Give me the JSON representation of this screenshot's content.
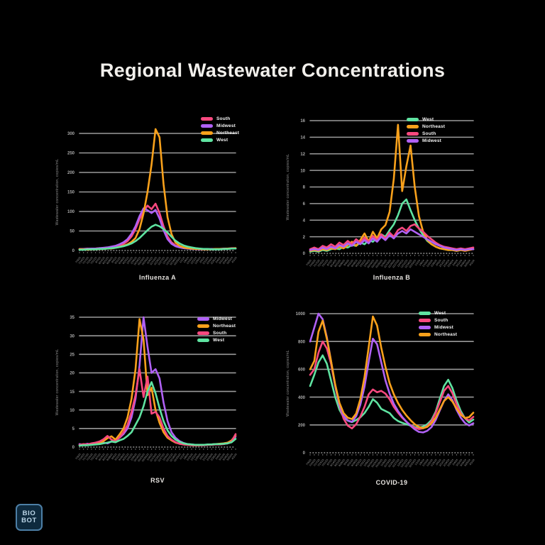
{
  "title": "Regional Wastewater Concentrations",
  "y_axis_title": "Wastewater concentration, copies/mL",
  "colors": {
    "South": "#F8497F",
    "Midwest": "#B061F5",
    "Northeast": "#F9A11B",
    "West": "#5FE3A1",
    "grid": "#9A9A9A",
    "tick_label": "#ABABAB",
    "title_text": "#F2F0EC"
  },
  "x_labels": [
    "7/3/23",
    "7/10/23",
    "7/17/23",
    "7/24/23",
    "7/31/23",
    "8/7/23",
    "8/14/23",
    "8/21/23",
    "8/28/23",
    "9/4/23",
    "9/11/23",
    "9/18/23",
    "9/25/23",
    "10/2/23",
    "10/9/23",
    "10/16/23",
    "10/23/23",
    "10/30/23",
    "11/6/23",
    "11/13/23",
    "11/20/23",
    "11/27/23",
    "12/4/23",
    "12/11/23",
    "12/18/23",
    "12/25/23",
    "1/1/24",
    "1/8/24",
    "1/15/24",
    "1/22/24",
    "1/29/24",
    "2/5/24",
    "2/12/24",
    "2/19/24",
    "2/26/24",
    "3/4/24",
    "3/11/24",
    "3/18/24",
    "3/25/24",
    "4/1/24"
  ],
  "chart_data": [
    {
      "id": "influenza-a",
      "type": "line",
      "subtitle": "Influenza A",
      "grid": true,
      "legend_position": "top-right",
      "ylim": [
        0,
        300
      ],
      "y_ticks": [
        0,
        50,
        100,
        150,
        200,
        250,
        300
      ],
      "series": [
        {
          "name": "South",
          "values": [
            4,
            4,
            5,
            4,
            5,
            6,
            5,
            7,
            8,
            10,
            13,
            17,
            24,
            36,
            55,
            80,
            100,
            115,
            106,
            120,
            96,
            62,
            36,
            21,
            13,
            9,
            7,
            5,
            5,
            4,
            4,
            3,
            4,
            3,
            4,
            4,
            5,
            5,
            6,
            6
          ]
        },
        {
          "name": "Midwest",
          "values": [
            3,
            4,
            4,
            5,
            5,
            6,
            7,
            8,
            10,
            12,
            16,
            21,
            29,
            43,
            62,
            88,
            108,
            103,
            96,
            104,
            82,
            52,
            29,
            17,
            11,
            8,
            6,
            5,
            4,
            4,
            3,
            3,
            3,
            4,
            3,
            4,
            4,
            5,
            5,
            5
          ]
        },
        {
          "name": "Northeast",
          "values": [
            3,
            3,
            2,
            3,
            3,
            4,
            4,
            5,
            5,
            7,
            9,
            12,
            16,
            22,
            32,
            55,
            95,
            150,
            220,
            311,
            290,
            170,
            85,
            42,
            20,
            12,
            8,
            6,
            5,
            4,
            4,
            3,
            3,
            3,
            4,
            4,
            4,
            5,
            5,
            6
          ]
        },
        {
          "name": "West",
          "values": [
            2,
            2,
            3,
            3,
            3,
            4,
            4,
            5,
            6,
            7,
            9,
            11,
            14,
            18,
            24,
            32,
            42,
            52,
            61,
            66,
            62,
            55,
            46,
            35,
            25,
            18,
            13,
            10,
            8,
            6,
            5,
            4,
            4,
            3,
            3,
            3,
            4,
            4,
            5,
            5
          ]
        }
      ]
    },
    {
      "id": "influenza-b",
      "type": "line",
      "subtitle": "Influenza B",
      "grid": true,
      "legend_position": "top-right",
      "ylim": [
        0,
        16
      ],
      "y_ticks": [
        0,
        2,
        4,
        6,
        8,
        10,
        12,
        14,
        16
      ],
      "series": [
        {
          "name": "West",
          "values": [
            0.2,
            0.3,
            0.2,
            0.4,
            0.3,
            0.5,
            0.6,
            0.5,
            0.8,
            0.7,
            1.0,
            0.9,
            1.3,
            1.1,
            1.6,
            1.4,
            1.9,
            2.3,
            2.0,
            2.8,
            3.5,
            4.6,
            6.0,
            6.5,
            5.2,
            4.0,
            3.0,
            2.2,
            1.5,
            1.1,
            0.8,
            0.6,
            0.5,
            0.4,
            0.4,
            0.3,
            0.4,
            0.4,
            0.5,
            0.5
          ]
        },
        {
          "name": "Northeast",
          "values": [
            0.3,
            0.4,
            0.3,
            0.5,
            0.4,
            0.6,
            0.5,
            0.8,
            0.6,
            1.0,
            1.4,
            0.9,
            1.6,
            2.4,
            1.4,
            2.6,
            1.8,
            2.9,
            3.4,
            5.0,
            9.0,
            15.5,
            7.5,
            10.5,
            13.0,
            8.0,
            4.5,
            2.6,
            1.6,
            1.1,
            0.8,
            0.6,
            0.5,
            0.4,
            0.4,
            0.3,
            0.4,
            0.3,
            0.4,
            0.5
          ]
        },
        {
          "name": "South",
          "values": [
            0.5,
            0.7,
            0.5,
            0.9,
            0.7,
            1.1,
            0.8,
            1.3,
            1.0,
            1.5,
            1.1,
            1.7,
            1.3,
            1.9,
            1.4,
            2.1,
            1.6,
            2.3,
            1.8,
            2.5,
            2.0,
            2.8,
            3.1,
            2.7,
            3.3,
            3.5,
            3.0,
            2.6,
            2.1,
            1.7,
            1.3,
            1.0,
            0.8,
            0.7,
            0.6,
            0.5,
            0.6,
            0.5,
            0.6,
            0.7
          ]
        },
        {
          "name": "Midwest",
          "values": [
            0.4,
            0.5,
            0.4,
            0.7,
            0.5,
            0.8,
            0.6,
            1.0,
            0.8,
            1.2,
            0.9,
            1.4,
            1.1,
            1.6,
            1.2,
            1.8,
            1.4,
            2.0,
            1.6,
            2.2,
            1.8,
            2.4,
            2.7,
            2.4,
            2.9,
            2.6,
            2.3,
            2.0,
            1.7,
            1.4,
            1.1,
            0.9,
            0.7,
            0.6,
            0.5,
            0.4,
            0.5,
            0.4,
            0.5,
            0.5
          ]
        }
      ]
    },
    {
      "id": "rsv",
      "type": "line",
      "subtitle": "RSV",
      "grid": true,
      "legend_position": "top-right",
      "ylim": [
        0,
        35
      ],
      "y_ticks": [
        0,
        5,
        10,
        15,
        20,
        25,
        30,
        35
      ],
      "series": [
        {
          "name": "Midwest",
          "values": [
            0.8,
            0.6,
            0.9,
            0.7,
            1.0,
            0.8,
            1.2,
            1.0,
            1.5,
            1.8,
            2.5,
            3.5,
            5,
            8,
            13,
            22,
            35,
            27,
            20,
            21,
            18.5,
            12,
            7,
            4,
            2.5,
            1.6,
            1.1,
            0.8,
            0.7,
            0.6,
            0.6,
            0.5,
            0.6,
            0.7,
            0.8,
            0.8,
            0.9,
            1.0,
            1.4,
            2.8
          ]
        },
        {
          "name": "Northeast",
          "values": [
            0.5,
            0.6,
            0.7,
            0.8,
            1.0,
            1.2,
            1.6,
            2.4,
            2.9,
            2.0,
            3.4,
            5,
            8,
            13,
            21,
            34.5,
            29,
            14,
            16,
            10,
            6.5,
            4,
            2.5,
            1.8,
            1.2,
            0.9,
            0.7,
            0.6,
            0.5,
            0.5,
            0.5,
            0.6,
            0.6,
            0.7,
            0.8,
            0.9,
            1.0,
            1.2,
            1.8,
            3.2
          ]
        },
        {
          "name": "South",
          "values": [
            0.6,
            0.8,
            0.7,
            1.0,
            1.2,
            1.5,
            2.1,
            3.0,
            2.0,
            1.5,
            2.6,
            4,
            6,
            9.5,
            14,
            21,
            13.5,
            19,
            9,
            9.5,
            8,
            5,
            3,
            2,
            1.3,
            0.9,
            0.7,
            0.6,
            0.5,
            0.5,
            0.5,
            0.5,
            0.6,
            0.6,
            0.7,
            0.7,
            0.8,
            1.0,
            1.5,
            3.5
          ]
        },
        {
          "name": "West",
          "values": [
            0.4,
            0.5,
            0.5,
            0.6,
            0.7,
            0.8,
            1.0,
            1.2,
            1.5,
            1.3,
            1.8,
            2.2,
            3,
            4,
            6,
            8,
            11,
            15,
            17.5,
            14.5,
            10.5,
            7,
            4.5,
            3,
            2,
            1.4,
            1.0,
            0.8,
            0.7,
            0.6,
            0.6,
            0.6,
            0.7,
            0.7,
            0.8,
            0.8,
            0.9,
            1.0,
            1.3,
            2.2
          ]
        }
      ]
    },
    {
      "id": "covid-19",
      "type": "line",
      "subtitle": "COVID-19",
      "grid": true,
      "legend_position": "top-right",
      "ylim": [
        0,
        1000
      ],
      "y_ticks": [
        0,
        200,
        400,
        600,
        800,
        1000
      ],
      "series": [
        {
          "name": "West",
          "values": [
            480,
            560,
            650,
            700,
            640,
            520,
            400,
            310,
            255,
            230,
            220,
            235,
            255,
            285,
            330,
            385,
            360,
            315,
            300,
            285,
            250,
            228,
            215,
            205,
            195,
            185,
            180,
            188,
            205,
            235,
            295,
            390,
            480,
            525,
            465,
            375,
            300,
            248,
            218,
            238
          ]
        },
        {
          "name": "South",
          "values": [
            560,
            600,
            720,
            800,
            750,
            640,
            480,
            340,
            245,
            195,
            175,
            205,
            260,
            330,
            420,
            455,
            435,
            445,
            425,
            385,
            330,
            288,
            252,
            222,
            198,
            180,
            170,
            176,
            192,
            225,
            285,
            365,
            445,
            480,
            428,
            348,
            285,
            248,
            232,
            258
          ]
        },
        {
          "name": "Midwest",
          "values": [
            800,
            900,
            1000,
            960,
            830,
            660,
            480,
            345,
            265,
            232,
            222,
            262,
            345,
            475,
            655,
            820,
            780,
            650,
            520,
            425,
            352,
            300,
            258,
            224,
            194,
            168,
            150,
            146,
            158,
            184,
            235,
            305,
            372,
            420,
            378,
            308,
            252,
            214,
            196,
            212
          ]
        },
        {
          "name": "Northeast",
          "values": [
            600,
            660,
            870,
            950,
            820,
            660,
            490,
            360,
            285,
            252,
            242,
            282,
            385,
            545,
            760,
            980,
            915,
            755,
            618,
            500,
            420,
            358,
            308,
            268,
            234,
            205,
            186,
            176,
            186,
            212,
            252,
            312,
            372,
            400,
            368,
            318,
            274,
            250,
            256,
            288
          ]
        }
      ]
    }
  ],
  "logo": {
    "line1": "BIO",
    "line2": "BOT"
  }
}
